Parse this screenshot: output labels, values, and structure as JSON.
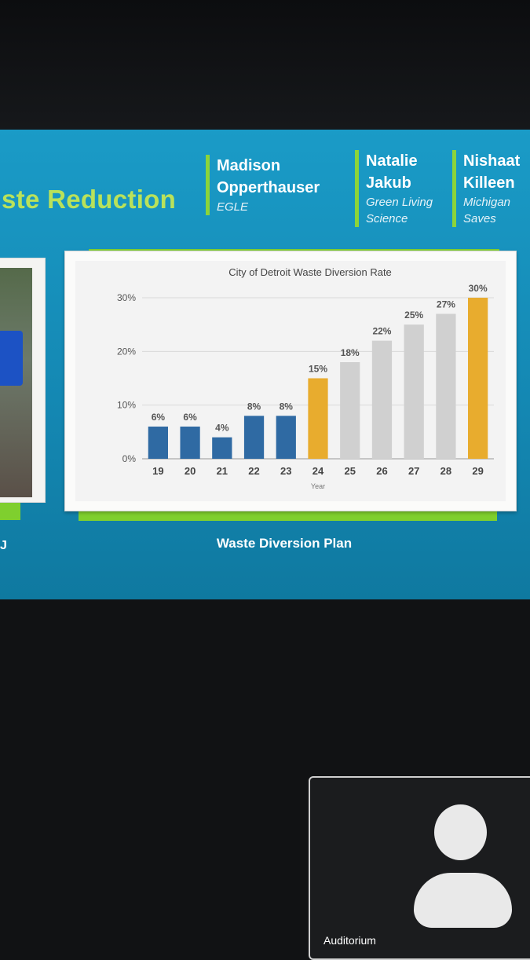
{
  "slide": {
    "title": "ste Reduction",
    "plan_label": "Waste Diversion Plan",
    "left_label": "J",
    "speakers": [
      {
        "name_line1": "Madison",
        "name_line2": "Opperthauser",
        "org_line1": "EGLE",
        "org_line2": ""
      },
      {
        "name_line1": "Natalie",
        "name_line2": "Jakub",
        "org_line1": "Green Living",
        "org_line2": "Science"
      },
      {
        "name_line1": "Nishaat",
        "name_line2": "Killeen",
        "org_line1": "Michigan",
        "org_line2": "Saves"
      }
    ]
  },
  "chart_data": {
    "type": "bar",
    "title": "City of Detroit Waste Diversion Rate",
    "xlabel": "Year",
    "ylabel": "",
    "categories": [
      "19",
      "20",
      "21",
      "22",
      "23",
      "24",
      "25",
      "26",
      "27",
      "28",
      "29"
    ],
    "values": [
      6,
      6,
      4,
      8,
      8,
      15,
      18,
      22,
      25,
      27,
      30
    ],
    "value_labels": [
      "6%",
      "6%",
      "4%",
      "8%",
      "8%",
      "15%",
      "18%",
      "22%",
      "25%",
      "27%",
      "30%"
    ],
    "bar_colors": [
      "#2f6aa3",
      "#2f6aa3",
      "#2f6aa3",
      "#2f6aa3",
      "#2f6aa3",
      "#e8ac2e",
      "#d0d0d0",
      "#d0d0d0",
      "#d0d0d0",
      "#d0d0d0",
      "#e8ac2e"
    ],
    "ylim": [
      0,
      30
    ],
    "yticks": [
      0,
      10,
      20,
      30
    ],
    "ytick_labels": [
      "0%",
      "10%",
      "20%",
      "30%"
    ],
    "grid": true
  },
  "meeting": {
    "participant_name": "Auditorium"
  }
}
